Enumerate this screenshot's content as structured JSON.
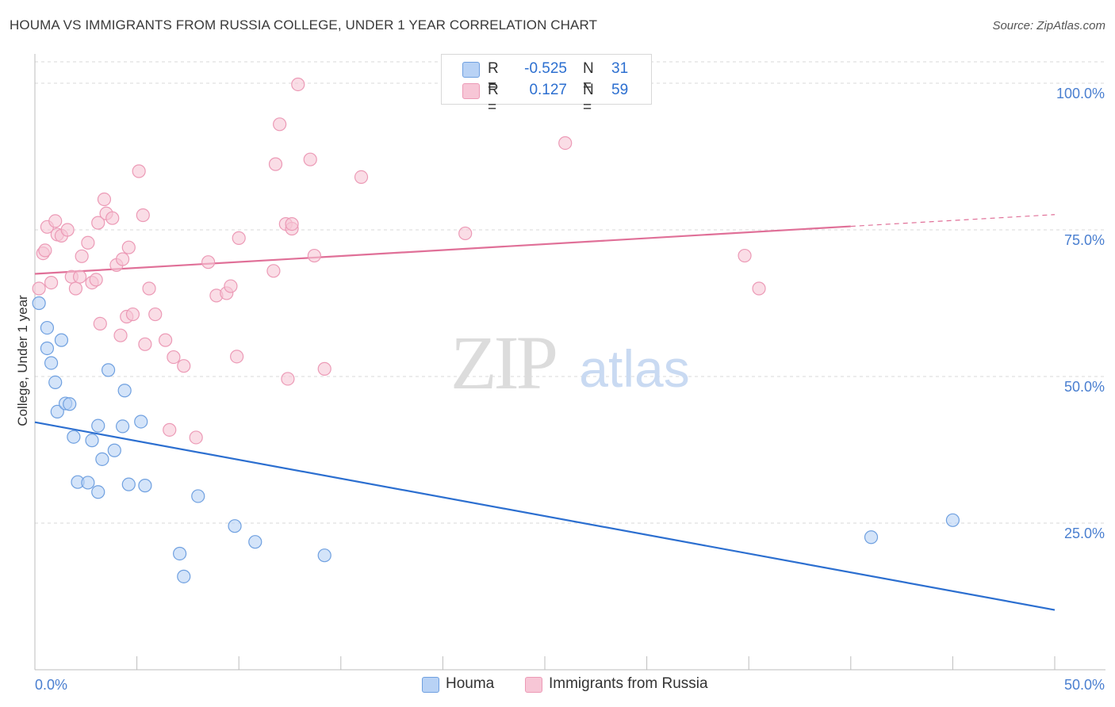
{
  "header": {
    "title": "HOUMA VS IMMIGRANTS FROM RUSSIA COLLEGE, UNDER 1 YEAR CORRELATION CHART",
    "source": "Source: ZipAtlas.com"
  },
  "legend": {
    "rows": [
      {
        "r_label": "R =",
        "r_value": "-0.525",
        "n_label": "N =",
        "n_value": "31"
      },
      {
        "r_label": "R =",
        "r_value": "0.127",
        "n_label": "N =",
        "n_value": "59"
      }
    ]
  },
  "watermark": {
    "zip": "ZIP",
    "atlas": "atlas"
  },
  "colors": {
    "houma_fill": "#b8d2f5",
    "houma_stroke": "#6fa0e0",
    "houma_line": "#2c6fd0",
    "russia_fill": "#f7c6d6",
    "russia_stroke": "#ec9ab6",
    "russia_line": "#e07098",
    "tick_text": "#4a7fd0",
    "grid": "#d9d9d9"
  },
  "chart_data": {
    "type": "scatter",
    "title": "HOUMA VS IMMIGRANTS FROM RUSSIA COLLEGE, UNDER 1 YEAR CORRELATION CHART",
    "xlabel": "",
    "ylabel": "College, Under 1 year",
    "xlim": [
      0,
      50
    ],
    "ylim": [
      0,
      105
    ],
    "x_tick_labels": [
      "0.0%",
      "50.0%"
    ],
    "y_ticks": [
      25,
      50,
      75,
      100
    ],
    "y_tick_labels": [
      "25.0%",
      "50.0%",
      "75.0%",
      "100.0%"
    ],
    "grid": "horizontal dashed",
    "legend_position": "bottom-center",
    "series": [
      {
        "name": "Houma",
        "points": [
          [
            0.2,
            62.5
          ],
          [
            0.6,
            54.8
          ],
          [
            0.6,
            58.3
          ],
          [
            0.8,
            52.3
          ],
          [
            1.0,
            49.0
          ],
          [
            1.1,
            44.0
          ],
          [
            1.3,
            56.2
          ],
          [
            1.5,
            45.4
          ],
          [
            1.7,
            45.3
          ],
          [
            1.9,
            39.7
          ],
          [
            2.1,
            32.0
          ],
          [
            2.6,
            31.9
          ],
          [
            2.8,
            39.1
          ],
          [
            3.1,
            41.6
          ],
          [
            3.1,
            30.3
          ],
          [
            3.3,
            35.9
          ],
          [
            3.6,
            51.1
          ],
          [
            3.9,
            37.4
          ],
          [
            4.3,
            41.5
          ],
          [
            4.4,
            47.6
          ],
          [
            4.6,
            31.6
          ],
          [
            5.2,
            42.3
          ],
          [
            5.4,
            31.4
          ],
          [
            7.1,
            19.8
          ],
          [
            7.3,
            15.9
          ],
          [
            8.0,
            29.6
          ],
          [
            9.8,
            24.5
          ],
          [
            10.8,
            21.8
          ],
          [
            14.2,
            19.5
          ],
          [
            41.0,
            22.6
          ],
          [
            45.0,
            25.5
          ]
        ],
        "trend": {
          "x": [
            0,
            50
          ],
          "y": [
            42.2,
            10.2
          ]
        }
      },
      {
        "name": "Immigrants from Russia",
        "points": [
          [
            0.2,
            65.0
          ],
          [
            0.4,
            71.0
          ],
          [
            0.5,
            71.5
          ],
          [
            0.6,
            75.5
          ],
          [
            0.8,
            66.0
          ],
          [
            1.0,
            76.5
          ],
          [
            1.1,
            74.2
          ],
          [
            1.3,
            74.0
          ],
          [
            1.6,
            75.0
          ],
          [
            1.8,
            67.0
          ],
          [
            2.0,
            65.0
          ],
          [
            2.2,
            67.0
          ],
          [
            2.3,
            70.5
          ],
          [
            2.6,
            72.8
          ],
          [
            2.8,
            66.0
          ],
          [
            3.0,
            66.5
          ],
          [
            3.1,
            76.2
          ],
          [
            3.2,
            59.0
          ],
          [
            3.4,
            80.2
          ],
          [
            3.5,
            77.8
          ],
          [
            3.8,
            77.0
          ],
          [
            4.0,
            69.0
          ],
          [
            4.2,
            57.0
          ],
          [
            4.3,
            70.0
          ],
          [
            4.5,
            60.2
          ],
          [
            4.6,
            72.0
          ],
          [
            4.8,
            60.6
          ],
          [
            5.1,
            85.0
          ],
          [
            5.3,
            77.5
          ],
          [
            5.4,
            55.5
          ],
          [
            5.6,
            65.0
          ],
          [
            5.9,
            60.6
          ],
          [
            6.4,
            56.2
          ],
          [
            6.8,
            53.3
          ],
          [
            7.3,
            51.8
          ],
          [
            8.5,
            69.5
          ],
          [
            8.9,
            63.8
          ],
          [
            9.4,
            64.2
          ],
          [
            9.6,
            65.4
          ],
          [
            9.9,
            53.4
          ],
          [
            10.0,
            73.6
          ],
          [
            11.7,
            68.0
          ],
          [
            11.8,
            86.2
          ],
          [
            12.0,
            93.0
          ],
          [
            12.3,
            76.0
          ],
          [
            12.6,
            75.2
          ],
          [
            12.9,
            99.8
          ],
          [
            13.5,
            87.0
          ],
          [
            13.7,
            70.6
          ],
          [
            14.2,
            51.3
          ],
          [
            16.0,
            84.0
          ],
          [
            21.1,
            74.4
          ],
          [
            26.0,
            89.8
          ],
          [
            34.8,
            70.6
          ],
          [
            35.5,
            65.0
          ],
          [
            6.6,
            40.9
          ],
          [
            7.9,
            39.6
          ],
          [
            12.4,
            49.6
          ],
          [
            12.6,
            76.0
          ]
        ],
        "trend": {
          "x": [
            0,
            40
          ],
          "y": [
            67.5,
            75.6
          ]
        },
        "trend_dashed": {
          "x": [
            40,
            50
          ],
          "y": [
            75.6,
            77.6
          ]
        }
      }
    ]
  }
}
